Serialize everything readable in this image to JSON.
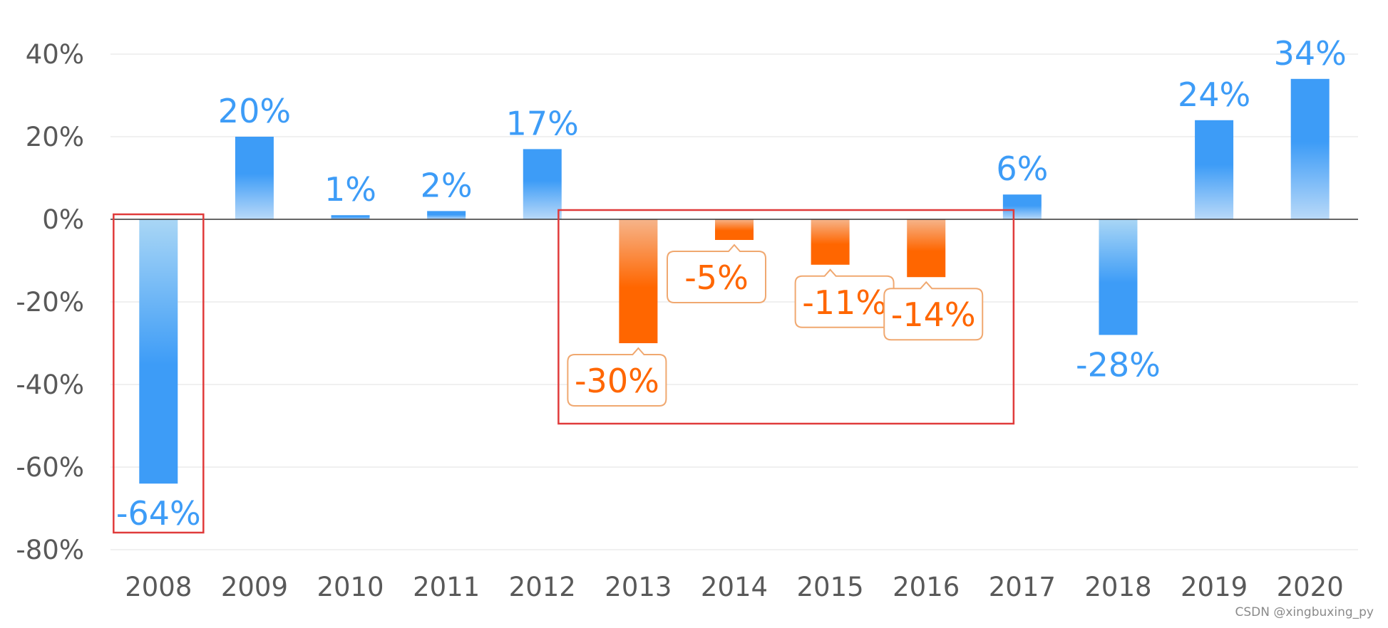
{
  "chart_data": {
    "type": "bar",
    "categories": [
      "2008",
      "2009",
      "2010",
      "2011",
      "2012",
      "2013",
      "2014",
      "2015",
      "2016",
      "2017",
      "2018",
      "2019",
      "2020"
    ],
    "values": [
      -64,
      20,
      1,
      2,
      17,
      -30,
      -5,
      -11,
      -14,
      6,
      -28,
      24,
      34
    ],
    "data_labels": [
      "-64%",
      "20%",
      "1%",
      "2%",
      "17%",
      "-30%",
      "-5%",
      "-11%",
      "-14%",
      "6%",
      "-28%",
      "24%",
      "34%"
    ],
    "y_ticks": [
      40,
      20,
      0,
      -20,
      -40,
      -60,
      -80
    ],
    "y_tick_labels": [
      "40%",
      "20%",
      "0%",
      "-20%",
      "-40%",
      "-60%",
      "-80%"
    ],
    "ylim": [
      -80,
      40
    ],
    "unit": "%",
    "grid": true,
    "highlighted_categories": [
      "2013",
      "2014",
      "2015",
      "2016"
    ],
    "callout_label_categories": [
      "2013",
      "2014",
      "2015",
      "2016"
    ],
    "boxed_groups": [
      [
        "2008"
      ],
      [
        "2013",
        "2014",
        "2015",
        "2016",
        "2017"
      ]
    ],
    "colors": {
      "bar_blue": "#3d9cf7",
      "bar_blue_light": "#a9d0f7",
      "bar_orange": "#ff6600",
      "bar_orange_light": "#f6b48a",
      "label_blue": "#3d9cf7",
      "label_orange": "#ff6600",
      "callout_border": "#f0a870",
      "highlight_box": "#e03b3b",
      "gridline": "#ebebeb",
      "zero_line": "#333333",
      "axis_text": "#595959"
    }
  },
  "watermark": "CSDN @xingbuxing_py"
}
